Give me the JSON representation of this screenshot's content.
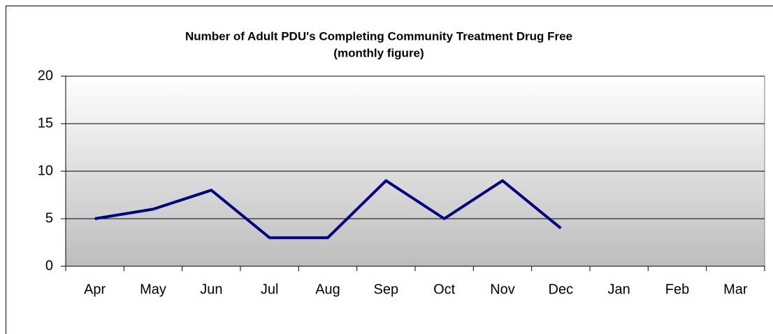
{
  "chart_data": {
    "type": "line",
    "title": "Number of Adult PDU's Completing Community Treatment Drug Free",
    "subtitle": "(monthly figure)",
    "categories": [
      "Apr",
      "May",
      "Jun",
      "Jul",
      "Aug",
      "Sep",
      "Oct",
      "Nov",
      "Dec",
      "Jan",
      "Feb",
      "Mar"
    ],
    "values": [
      5,
      6,
      8,
      3,
      3,
      9,
      5,
      9,
      4,
      null,
      null,
      null
    ],
    "color": "#000080",
    "ylim": [
      0,
      20
    ],
    "yticks": [
      0,
      5,
      10,
      15,
      20
    ],
    "grid": true
  }
}
